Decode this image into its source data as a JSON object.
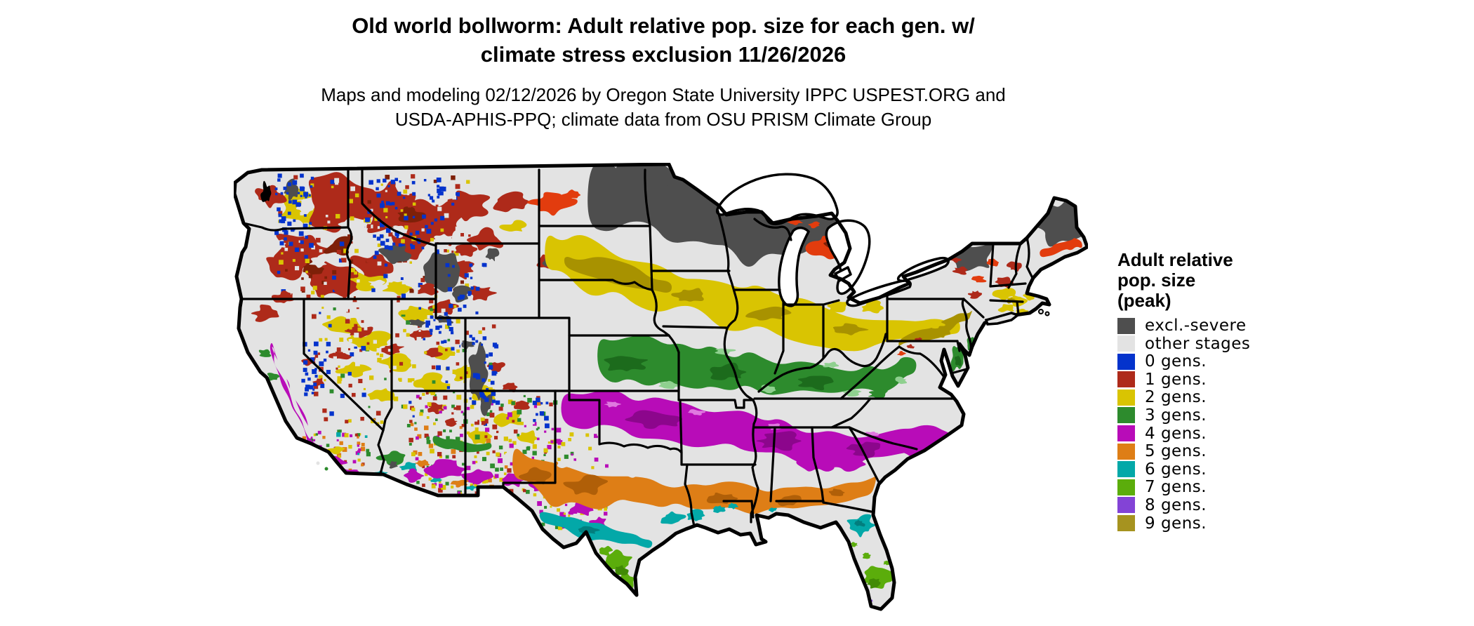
{
  "header": {
    "title_line1": "Old world bollworm: Adult relative pop. size for each gen. w/",
    "title_line2": "climate stress exclusion 11/26/2026",
    "subtitle_line1": "Maps and modeling 02/12/2026 by Oregon State University IPPC USPEST.ORG and",
    "subtitle_line2": "USDA-APHIS-PPQ; climate data from OSU PRISM Climate Group"
  },
  "legend": {
    "title_lines": [
      "Adult relative",
      "pop. size",
      "(peak)"
    ],
    "items": [
      {
        "label": "excl.-severe",
        "key": "excl_severe"
      },
      {
        "label": "other stages",
        "key": "other_stages"
      },
      {
        "label": "0 gens.",
        "key": "gens0"
      },
      {
        "label": "1 gens.",
        "key": "gens1"
      },
      {
        "label": "2 gens.",
        "key": "gens2"
      },
      {
        "label": "3 gens.",
        "key": "gens3"
      },
      {
        "label": "4 gens.",
        "key": "gens4"
      },
      {
        "label": "5 gens.",
        "key": "gens5"
      },
      {
        "label": "6 gens.",
        "key": "gens6"
      },
      {
        "label": "7 gens.",
        "key": "gens7"
      },
      {
        "label": "8 gens.",
        "key": "gens8"
      },
      {
        "label": "9 gens.",
        "key": "gens9"
      }
    ]
  },
  "palette": {
    "excl_severe": "#4e4e4e",
    "other_stages": "#e3e3e3",
    "gens0": "#0433cc",
    "gens1": "#ae2a1a",
    "gens1_bright": "#e23c0e",
    "gens1_dark": "#7e2008",
    "gens2": "#d9c402",
    "gens2_dark": "#a89200",
    "gens3": "#2d8b2d",
    "gens3_dark": "#1c6b1c",
    "gens3_light": "#8fd08f",
    "gens4": "#b80cb8",
    "gens4_dark": "#8c068c",
    "gens4_light": "#df79df",
    "gens5": "#de7e16",
    "gens5_dark": "#b05f08",
    "gens6": "#03a8a8",
    "gens6_dark": "#027e7e",
    "gens7": "#5bad0b",
    "gens7_dark": "#418a05",
    "gens8": "#8343d6",
    "gens9": "#a6931f",
    "water": "#ffffff",
    "border": "#000000"
  }
}
